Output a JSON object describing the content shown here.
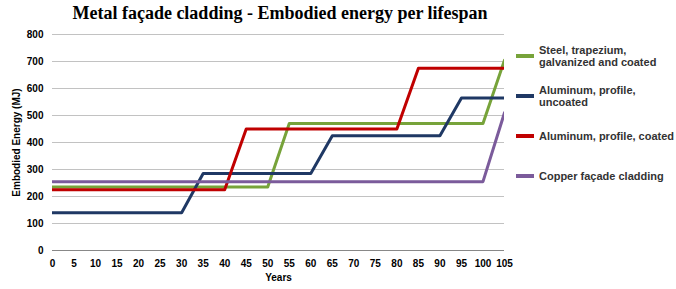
{
  "chart_data": {
    "type": "line",
    "title": "Metal façade cladding - Embodied energy per lifespan",
    "x_label": "Years",
    "y_label": "Embodied Energy (MJ)",
    "x": [
      0,
      5,
      10,
      15,
      20,
      25,
      30,
      35,
      40,
      45,
      50,
      55,
      60,
      65,
      70,
      75,
      80,
      85,
      90,
      95,
      100,
      105
    ],
    "series": [
      {
        "name": "Steel, trapezium, galvanized and coated",
        "color": "#77a33a",
        "values": [
          235,
          235,
          235,
          235,
          235,
          235,
          235,
          235,
          235,
          235,
          235,
          470,
          470,
          470,
          470,
          470,
          470,
          470,
          470,
          470,
          470,
          705
        ]
      },
      {
        "name": "Aluminum, profile, uncoated",
        "color": "#1f3864",
        "values": [
          140,
          140,
          140,
          140,
          140,
          140,
          140,
          285,
          285,
          285,
          285,
          285,
          285,
          425,
          425,
          425,
          425,
          425,
          425,
          565,
          565,
          565
        ]
      },
      {
        "name": "Aluminum, profile, coated",
        "color": "#c00000",
        "values": [
          225,
          225,
          225,
          225,
          225,
          225,
          225,
          225,
          225,
          450,
          450,
          450,
          450,
          450,
          450,
          450,
          450,
          675,
          675,
          675,
          675,
          675
        ]
      },
      {
        "name": "Copper façade cladding",
        "color": "#7b5b9b",
        "values": [
          255,
          255,
          255,
          255,
          255,
          255,
          255,
          255,
          255,
          255,
          255,
          255,
          255,
          255,
          255,
          255,
          255,
          255,
          255,
          255,
          255,
          510
        ]
      }
    ],
    "xlim": [
      0,
      105
    ],
    "xticks": [
      0,
      5,
      10,
      15,
      20,
      25,
      30,
      35,
      40,
      45,
      50,
      55,
      60,
      65,
      70,
      75,
      80,
      85,
      90,
      95,
      100,
      105
    ],
    "ylim": [
      0,
      800
    ],
    "yticks": [
      0,
      100,
      200,
      300,
      400,
      500,
      600,
      700,
      800
    ],
    "grid": true,
    "legend": "right"
  }
}
